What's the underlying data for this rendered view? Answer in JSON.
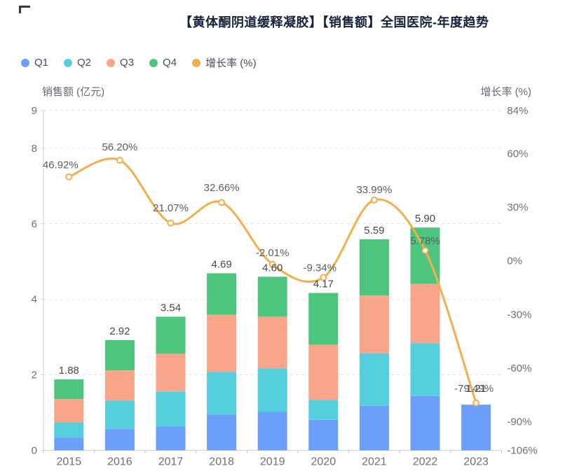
{
  "chart_data": {
    "type": "stacked-bar+line",
    "title": "【黄体酮阴道缓释凝胶】【销售额】全国医院-年度趋势",
    "categories": [
      "2015",
      "2016",
      "2017",
      "2018",
      "2019",
      "2020",
      "2021",
      "2022",
      "2023"
    ],
    "series": [
      {
        "name": "Q1",
        "type": "bar",
        "stack": "sales",
        "color": "#6B9FF9",
        "values": [
          0.34,
          0.57,
          0.63,
          0.95,
          1.02,
          0.81,
          1.18,
          1.44,
          1.21
        ]
      },
      {
        "name": "Q2",
        "type": "bar",
        "stack": "sales",
        "color": "#55CFDD",
        "values": [
          0.4,
          0.75,
          0.93,
          1.13,
          1.15,
          0.53,
          1.39,
          1.4,
          0
        ]
      },
      {
        "name": "Q3",
        "type": "bar",
        "stack": "sales",
        "color": "#F9A589",
        "values": [
          0.62,
          0.8,
          1.0,
          1.51,
          1.37,
          1.46,
          1.53,
          1.57,
          0
        ]
      },
      {
        "name": "Q4",
        "type": "bar",
        "stack": "sales",
        "color": "#4EC57E",
        "values": [
          0.52,
          0.8,
          0.98,
          1.1,
          1.06,
          1.37,
          1.49,
          1.49,
          0
        ]
      },
      {
        "name": "增长率 (%)",
        "type": "line",
        "axis": "right",
        "color": "#F3AE4D",
        "values": [
          46.92,
          56.2,
          21.07,
          32.66,
          -2.01,
          -9.34,
          33.99,
          5.78,
          -79.49
        ],
        "point_labels": [
          "46.92%",
          "56.20%",
          "21.07%",
          "32.66%",
          "-2.01%",
          "-9.34%",
          "33.99%",
          "5.78%",
          "-79.49%"
        ]
      }
    ],
    "bar_total_labels": [
      "1.88",
      "2.92",
      "3.54",
      "4.69",
      "4.60",
      "4.17",
      "5.59",
      "5.90",
      "1.21"
    ],
    "left_axis": {
      "title": "销售额 (亿元)",
      "min": 0,
      "max": 9,
      "ticks": [
        0,
        2,
        4,
        6,
        8,
        9
      ]
    },
    "right_axis": {
      "title": "增长率 (%)",
      "min": -106,
      "max": 84,
      "tick_values": [
        84,
        60,
        30,
        0,
        -30,
        -60,
        -90,
        -106
      ],
      "tick_labels": [
        "84%",
        "60%",
        "30%",
        "0%",
        "-30%",
        "-60%",
        "-90%",
        "-106%"
      ]
    },
    "legend_position": "top-left",
    "grid": {
      "horizontal_dashed": true
    }
  }
}
